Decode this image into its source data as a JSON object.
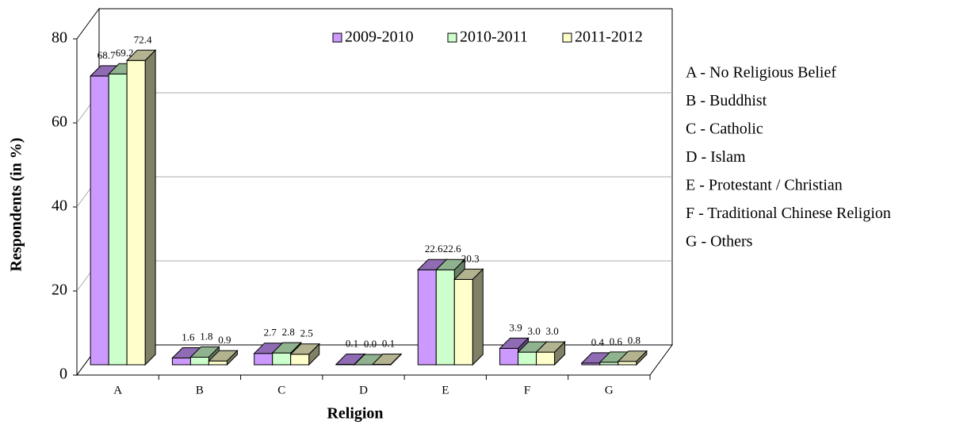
{
  "chart_data": {
    "type": "bar3d",
    "x_label": "Religion",
    "y_label": "Respondents (in %)",
    "categories": [
      "A",
      "B",
      "C",
      "D",
      "E",
      "F",
      "G"
    ],
    "series": [
      {
        "name": "2009-2010",
        "color": "#cc99ff",
        "values": [
          68.7,
          1.6,
          2.7,
          0.1,
          22.6,
          3.9,
          0.4
        ],
        "value_labels": [
          "68.7",
          "1.6",
          "2.7",
          "0.1",
          "22.6",
          "3.9",
          "0.4"
        ]
      },
      {
        "name": "2010-2011",
        "color": "#ccffcc",
        "values": [
          69.2,
          1.8,
          2.8,
          0,
          22.6,
          3,
          0.6
        ],
        "value_labels": [
          "69.2",
          "1.8",
          "2.8",
          "0.0",
          "22.6",
          "3.0",
          "0.6"
        ]
      },
      {
        "name": "2011-2012",
        "color": "#ffffcc",
        "values": [
          72.4,
          0.9,
          2.5,
          0.1,
          20.3,
          3,
          0.8
        ],
        "value_labels": [
          "72.4",
          "0.9",
          "2.5",
          "0.1",
          "20.3",
          "3.0",
          "0.8"
        ]
      }
    ],
    "category_legend": [
      "A - No Religious Belief",
      "B - Buddhist",
      "C - Catholic",
      "D - Islam",
      "E - Protestant / Christian",
      "F - Traditional Chinese Religion",
      "G - Others"
    ],
    "ylim": [
      0,
      80
    ],
    "yticks": [
      0,
      20,
      40,
      60,
      80
    ],
    "grid": true,
    "legend": "top-right"
  }
}
